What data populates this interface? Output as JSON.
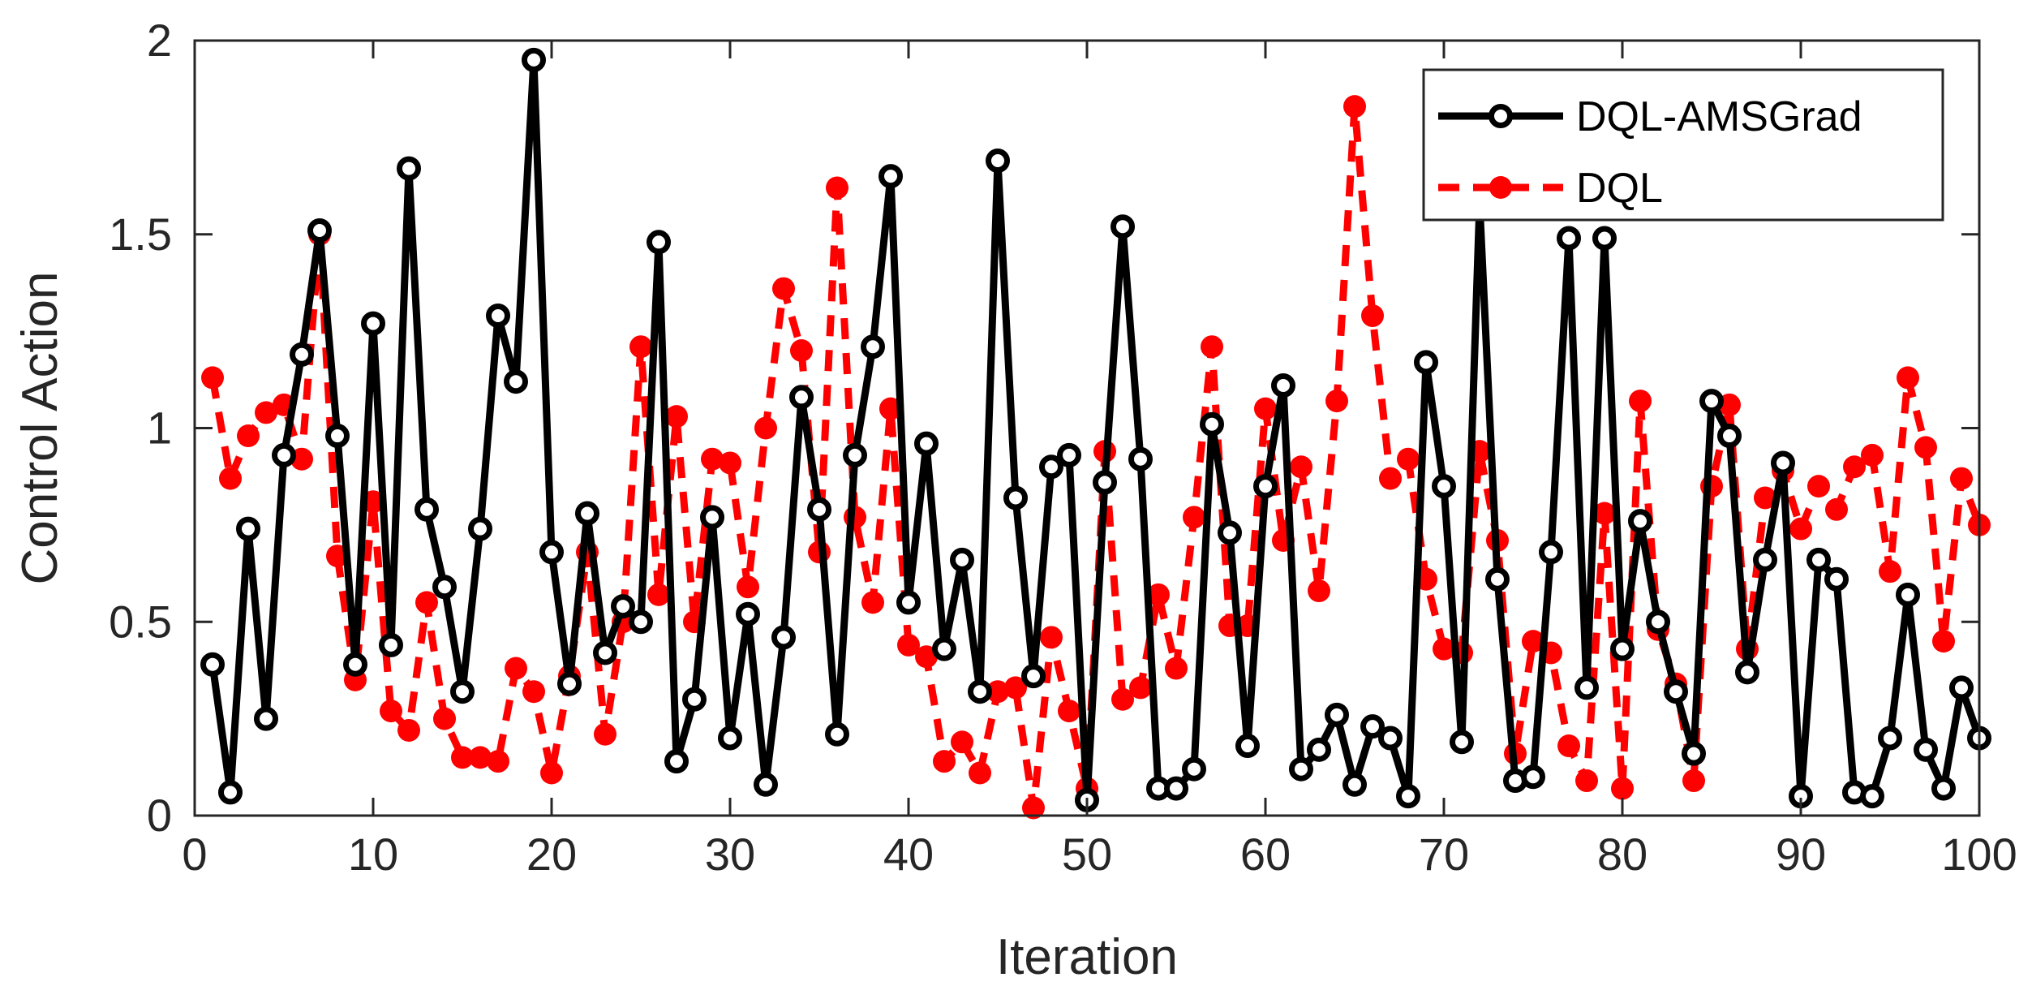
{
  "chart_data": {
    "type": "line",
    "title": "",
    "xlabel": "Iteration",
    "ylabel": "Control Action",
    "xlim": [
      0,
      100
    ],
    "ylim": [
      0,
      2
    ],
    "xticks": [
      0,
      10,
      20,
      30,
      40,
      50,
      60,
      70,
      80,
      90,
      100
    ],
    "yticks": [
      0,
      0.5,
      1,
      1.5,
      2
    ],
    "xtick_labels": [
      "0",
      "10",
      "20",
      "30",
      "40",
      "50",
      "60",
      "70",
      "80",
      "90",
      "100"
    ],
    "ytick_labels": [
      "0",
      "0.5",
      "1",
      "1.5",
      "2"
    ],
    "grid": false,
    "legend_position": "top-right",
    "x": [
      1,
      2,
      3,
      4,
      5,
      6,
      7,
      8,
      9,
      10,
      11,
      12,
      13,
      14,
      15,
      16,
      17,
      18,
      19,
      20,
      21,
      22,
      23,
      24,
      25,
      26,
      27,
      28,
      29,
      30,
      31,
      32,
      33,
      34,
      35,
      36,
      37,
      38,
      39,
      40,
      41,
      42,
      43,
      44,
      45,
      46,
      47,
      48,
      49,
      50,
      51,
      52,
      53,
      54,
      55,
      56,
      57,
      58,
      59,
      60,
      61,
      62,
      63,
      64,
      65,
      66,
      67,
      68,
      69,
      70,
      71,
      72,
      73,
      74,
      75,
      76,
      77,
      78,
      79,
      80,
      81,
      82,
      83,
      84,
      85,
      86,
      87,
      88,
      89,
      90,
      91,
      92,
      93,
      94,
      95,
      96,
      97,
      98,
      99,
      100
    ],
    "series": [
      {
        "name": "DQL-AMSGrad",
        "color": "#000000",
        "line_style": "solid",
        "marker": "circle-open",
        "values": [
          0.39,
          0.06,
          0.74,
          0.25,
          0.93,
          1.19,
          1.51,
          0.98,
          0.39,
          1.27,
          0.44,
          1.67,
          0.79,
          0.59,
          0.32,
          0.74,
          1.29,
          1.12,
          1.95,
          0.68,
          0.34,
          0.78,
          0.42,
          0.54,
          0.5,
          1.48,
          0.14,
          0.3,
          0.77,
          0.2,
          0.52,
          0.08,
          0.46,
          1.08,
          0.79,
          0.21,
          0.93,
          1.21,
          1.65,
          0.55,
          0.96,
          0.43,
          0.66,
          0.32,
          1.69,
          0.82,
          0.36,
          0.9,
          0.93,
          0.04,
          0.86,
          1.52,
          0.92,
          0.07,
          0.07,
          0.12,
          1.01,
          0.73,
          0.18,
          0.85,
          1.11,
          0.12,
          0.17,
          0.26,
          0.08,
          0.23,
          0.2,
          0.05,
          1.17,
          0.85,
          0.19,
          1.58,
          0.61,
          0.09,
          0.1,
          0.68,
          1.49,
          0.33,
          1.49,
          0.43,
          0.76,
          0.5,
          0.32,
          0.16,
          1.07,
          0.98,
          0.37,
          0.66,
          0.91,
          0.05,
          0.66,
          0.61,
          0.06,
          0.05,
          0.2,
          0.57,
          0.17,
          0.07,
          0.33,
          0.2
        ]
      },
      {
        "name": "DQL",
        "color": "#ff0000",
        "line_style": "dashed",
        "marker": "circle-filled",
        "values": [
          1.13,
          0.87,
          0.98,
          1.04,
          1.06,
          0.92,
          1.5,
          0.67,
          0.35,
          0.81,
          0.27,
          0.22,
          0.55,
          0.25,
          0.15,
          0.15,
          0.14,
          0.38,
          0.32,
          0.11,
          0.36,
          0.68,
          0.21,
          0.5,
          1.21,
          0.57,
          1.03,
          0.5,
          0.92,
          0.91,
          0.59,
          1.0,
          1.36,
          1.2,
          0.68,
          1.62,
          0.77,
          0.55,
          1.05,
          0.44,
          0.41,
          0.14,
          0.19,
          0.11,
          0.32,
          0.33,
          0.02,
          0.46,
          0.27,
          0.07,
          0.94,
          0.3,
          0.33,
          0.57,
          0.38,
          0.77,
          1.21,
          0.49,
          0.49,
          1.05,
          0.71,
          0.9,
          0.58,
          1.07,
          1.83,
          1.29,
          0.87,
          0.92,
          0.61,
          0.43,
          0.42,
          0.94,
          0.71,
          0.16,
          0.45,
          0.42,
          0.18,
          0.09,
          0.78,
          0.07,
          1.07,
          0.48,
          0.34,
          0.09,
          0.85,
          1.06,
          0.43,
          0.82,
          0.89,
          0.74,
          0.85,
          0.79,
          0.9,
          0.93,
          0.63,
          1.13,
          0.95,
          0.45,
          0.87,
          0.75
        ]
      }
    ]
  }
}
